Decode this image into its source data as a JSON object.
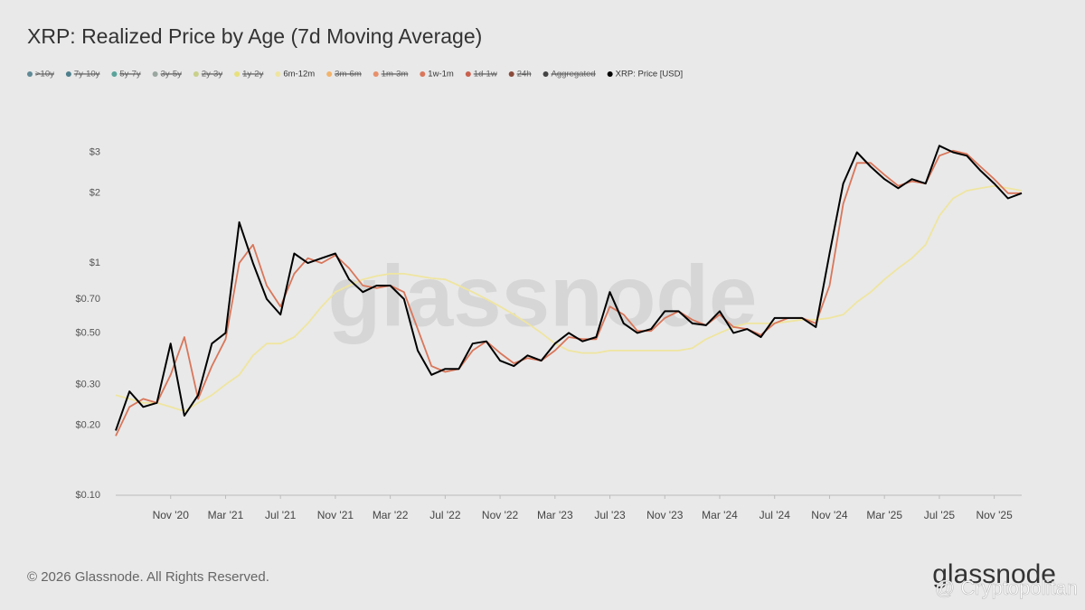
{
  "chart_data": {
    "type": "line",
    "title": "XRP: Realized Price by Age (7d Moving Average)",
    "log_scale": true,
    "grid": false,
    "legend_position": "top-left",
    "categories": [
      null,
      null,
      null,
      null,
      "Nov '20",
      null,
      null,
      null,
      "Mar '21",
      null,
      null,
      null,
      "Jul '21",
      null,
      null,
      null,
      "Nov '21",
      null,
      null,
      null,
      "Mar '22",
      null,
      null,
      null,
      "Jul '22",
      null,
      null,
      null,
      "Nov '22",
      null,
      null,
      null,
      "Mar '23",
      null,
      null,
      null,
      "Jul '23",
      null,
      null,
      null,
      "Nov '23",
      null,
      null,
      null,
      "Mar '24",
      null,
      null,
      null,
      "Jul '24",
      null,
      null,
      null,
      "Nov '24",
      null,
      null,
      null,
      "Mar '25",
      null,
      null,
      null,
      "Jul '25",
      null,
      null,
      null,
      "Nov '25",
      null,
      null
    ],
    "ylim": [
      0.1,
      4.2
    ],
    "yticks": [
      {
        "value": 0.1,
        "label": "$0.10"
      },
      {
        "value": 0.2,
        "label": "$0.20"
      },
      {
        "value": 0.3,
        "label": "$0.30"
      },
      {
        "value": 0.5,
        "label": "$0.50"
      },
      {
        "value": 0.7,
        "label": "$0.70"
      },
      {
        "value": 1,
        "label": "$1"
      },
      {
        "value": 2,
        "label": "$2"
      },
      {
        "value": 3,
        "label": "$3"
      }
    ],
    "series": [
      {
        "name": ">10y",
        "color": "#5f8a96",
        "visible": false
      },
      {
        "name": "7y-10y",
        "color": "#4f7f8c",
        "visible": false
      },
      {
        "name": "5y-7y",
        "color": "#5aa39a",
        "visible": false
      },
      {
        "name": "3y-5y",
        "color": "#9aa6a0",
        "visible": false
      },
      {
        "name": "2y-3y",
        "color": "#c8d08a",
        "visible": false
      },
      {
        "name": "1y-2y",
        "color": "#e8e07a",
        "visible": false
      },
      {
        "name": "6m-12m",
        "color": "#efe5a0",
        "visible": true,
        "values": [
          0.27,
          0.26,
          0.25,
          0.25,
          0.24,
          0.23,
          0.25,
          0.27,
          0.3,
          0.33,
          0.4,
          0.45,
          0.45,
          0.48,
          0.55,
          0.65,
          0.75,
          0.8,
          0.85,
          0.88,
          0.9,
          0.9,
          0.88,
          0.86,
          0.85,
          0.8,
          0.75,
          0.7,
          0.65,
          0.6,
          0.55,
          0.5,
          0.45,
          0.42,
          0.41,
          0.41,
          0.42,
          0.42,
          0.42,
          0.42,
          0.42,
          0.42,
          0.43,
          0.47,
          0.5,
          0.53,
          0.55,
          0.55,
          0.55,
          0.56,
          0.57,
          0.57,
          0.58,
          0.6,
          0.68,
          0.75,
          0.85,
          0.95,
          1.05,
          1.2,
          1.6,
          1.9,
          2.05,
          2.1,
          2.15,
          2.1,
          2.05
        ]
      },
      {
        "name": "3m-6m",
        "color": "#f2b36a",
        "visible": false
      },
      {
        "name": "1m-3m",
        "color": "#e8906a",
        "visible": false
      },
      {
        "name": "1w-1m",
        "color": "#d9765a",
        "visible": true,
        "values": [
          0.18,
          0.24,
          0.26,
          0.25,
          0.33,
          0.48,
          0.26,
          0.36,
          0.47,
          1.0,
          1.2,
          0.8,
          0.65,
          0.9,
          1.05,
          1.0,
          1.08,
          0.95,
          0.8,
          0.78,
          0.8,
          0.75,
          0.52,
          0.36,
          0.34,
          0.35,
          0.42,
          0.46,
          0.41,
          0.37,
          0.39,
          0.38,
          0.42,
          0.48,
          0.47,
          0.47,
          0.65,
          0.6,
          0.51,
          0.51,
          0.58,
          0.62,
          0.57,
          0.54,
          0.6,
          0.53,
          0.52,
          0.49,
          0.55,
          0.58,
          0.58,
          0.55,
          0.8,
          1.8,
          2.7,
          2.7,
          2.4,
          2.15,
          2.25,
          2.2,
          2.9,
          3.05,
          2.95,
          2.6,
          2.3,
          2.0,
          2.0
        ]
      },
      {
        "name": "1d-1w",
        "color": "#c9604e",
        "visible": false
      },
      {
        "name": "24h",
        "color": "#8a4a3a",
        "visible": false
      },
      {
        "name": "Aggregated",
        "color": "#444444",
        "visible": false
      },
      {
        "name": "XRP: Price [USD]",
        "color": "#000000",
        "visible": true,
        "values": [
          0.19,
          0.28,
          0.24,
          0.25,
          0.45,
          0.22,
          0.27,
          0.45,
          0.5,
          1.5,
          1.0,
          0.7,
          0.6,
          1.1,
          1.0,
          1.05,
          1.1,
          0.85,
          0.75,
          0.8,
          0.8,
          0.7,
          0.42,
          0.33,
          0.35,
          0.35,
          0.45,
          0.46,
          0.38,
          0.36,
          0.4,
          0.38,
          0.45,
          0.5,
          0.46,
          0.48,
          0.75,
          0.55,
          0.5,
          0.52,
          0.62,
          0.62,
          0.55,
          0.54,
          0.62,
          0.5,
          0.52,
          0.48,
          0.58,
          0.58,
          0.58,
          0.53,
          1.1,
          2.2,
          3.0,
          2.6,
          2.3,
          2.1,
          2.3,
          2.2,
          3.2,
          3.0,
          2.9,
          2.5,
          2.2,
          1.9,
          2.0
        ]
      }
    ]
  },
  "footer": {
    "copyright": "© 2026 Glassnode. All Rights Reserved.",
    "logo": "glassnode",
    "watermark": "glassnode",
    "overlay": "@ Cryptopolitan"
  }
}
